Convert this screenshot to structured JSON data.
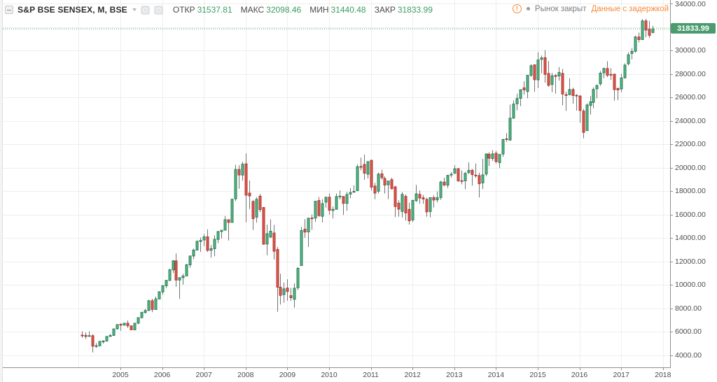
{
  "header": {
    "symbol": "S&P BSE SENSEX, M, BSE",
    "ohlc": [
      {
        "label": "ОТКР",
        "value": "31537.81"
      },
      {
        "label": "МАКС",
        "value": "32098.46"
      },
      {
        "label": "МИН",
        "value": "31440.48"
      },
      {
        "label": "ЗАКР",
        "value": "31833.99"
      }
    ]
  },
  "status": {
    "warning_glyph": "!",
    "market_status": "Рынок закрыт",
    "delay_notice": "Данные с задержкой"
  },
  "price_scale": {
    "last_price_label": "31833.99"
  },
  "colors": {
    "up_fill": "#53b987",
    "up_border": "#2c7c57",
    "down_fill": "#e0564e",
    "down_border": "#ae3b32",
    "wick": "#737375",
    "grid": "#eeeeee",
    "axis_line": "#8f8f8f",
    "axis_text": "#4c4c4c",
    "accent_green": "#3f9e68",
    "price_tag_bg": "#4a9c6e",
    "accent_orange": "#f58b3d",
    "muted_text": "#7e7e7e",
    "title_text": "#2e2e2e"
  },
  "chart_data": {
    "type": "candlestick",
    "title": "S&P BSE SENSEX",
    "interval": "M",
    "exchange": "BSE",
    "start_month": "2004-02",
    "last_close": 31833.99,
    "y_axis": {
      "min": 4000,
      "max": 34000,
      "tick_step": 2000,
      "tick_labels": [
        "4000.00",
        "6000.00",
        "8000.00",
        "10000.00",
        "12000.00",
        "14000.00",
        "16000.00",
        "18000.00",
        "20000.00",
        "22000.00",
        "24000.00",
        "26000.00",
        "28000.00",
        "30000.00",
        "32000.00",
        "34000.00"
      ]
    },
    "x_axis": {
      "year_labels": [
        "2005",
        "2006",
        "2007",
        "2008",
        "2009",
        "2010",
        "2011",
        "2012",
        "2013",
        "2014",
        "2015",
        "2016",
        "2017",
        "2018"
      ]
    },
    "candles": [
      [
        5699,
        6035,
        5480,
        5668
      ],
      [
        5679,
        5935,
        5365,
        5591
      ],
      [
        5600,
        6023,
        5599,
        5655
      ],
      [
        5656,
        5772,
        4227,
        4760
      ],
      [
        4767,
        5013,
        4613,
        4795
      ],
      [
        4799,
        5200,
        4723,
        5170
      ],
      [
        5175,
        5269,
        4982,
        5192
      ],
      [
        5196,
        5638,
        5156,
        5584
      ],
      [
        5589,
        5803,
        5558,
        5672
      ],
      [
        5679,
        6248,
        5649,
        6234
      ],
      [
        6242,
        6617,
        6176,
        6603
      ],
      [
        6626,
        6696,
        6069,
        6556
      ],
      [
        6552,
        6721,
        6508,
        6714
      ],
      [
        6715,
        6955,
        6321,
        6493
      ],
      [
        6488,
        6528,
        6118,
        6154
      ],
      [
        6154,
        6715,
        6140,
        6715
      ],
      [
        6717,
        7228,
        6647,
        7194
      ],
      [
        7194,
        7708,
        7123,
        7635
      ],
      [
        7636,
        7921,
        7537,
        7805
      ],
      [
        7806,
        8722,
        7818,
        8634
      ],
      [
        8637,
        8800,
        7656,
        7892
      ],
      [
        7891,
        8994,
        7891,
        8789
      ],
      [
        8789,
        9443,
        8769,
        9398
      ],
      [
        9390,
        9945,
        9158,
        9920
      ],
      [
        9919,
        10422,
        9713,
        10370
      ],
      [
        10368,
        11356,
        10344,
        11280
      ],
      [
        11280,
        12102,
        11008,
        12043
      ],
      [
        12037,
        12671,
        9826,
        10399
      ],
      [
        10399,
        10626,
        8799,
        10609
      ],
      [
        10609,
        10930,
        10007,
        10744
      ],
      [
        10751,
        11794,
        10751,
        11699
      ],
      [
        11699,
        12485,
        11444,
        12454
      ],
      [
        12454,
        13076,
        12178,
        12962
      ],
      [
        12962,
        13799,
        12937,
        13696
      ],
      [
        13696,
        14035,
        12801,
        13787
      ],
      [
        13827,
        14325,
        13303,
        14091
      ],
      [
        14090,
        14724,
        12800,
        12938
      ],
      [
        12938,
        13386,
        12316,
        13072
      ],
      [
        13072,
        14228,
        12426,
        13872
      ],
      [
        13872,
        14576,
        13554,
        14544
      ],
      [
        14544,
        14683,
        13946,
        14651
      ],
      [
        14664,
        15869,
        14638,
        15551
      ],
      [
        15552,
        15576,
        13779,
        15319
      ],
      [
        15323,
        17361,
        15323,
        17291
      ],
      [
        17328,
        20238,
        17145,
        19838
      ],
      [
        19837,
        20204,
        18183,
        19363
      ],
      [
        19363,
        20498,
        18886,
        20287
      ],
      [
        20325,
        21206,
        15332,
        17649
      ],
      [
        17820,
        18895,
        16457,
        17579
      ],
      [
        17105,
        17227,
        14677,
        15644
      ],
      [
        15771,
        17480,
        15297,
        17287
      ],
      [
        17560,
        17735,
        16196,
        16416
      ],
      [
        16591,
        16632,
        13406,
        13462
      ],
      [
        13480,
        15130,
        12514,
        14356
      ],
      [
        14064,
        15580,
        14003,
        14565
      ],
      [
        14412,
        15107,
        12153,
        12860
      ],
      [
        13006,
        13203,
        7697,
        9788
      ],
      [
        9788,
        10945,
        8316,
        9093
      ],
      [
        9162,
        10188,
        8467,
        9647
      ],
      [
        9721,
        10469,
        8631,
        9424
      ],
      [
        9066,
        9725,
        8619,
        8892
      ],
      [
        8762,
        10127,
        8047,
        9709
      ],
      [
        9745,
        11492,
        9546,
        11403
      ],
      [
        11635,
        14931,
        11621,
        14625
      ],
      [
        14746,
        15600,
        14016,
        14494
      ],
      [
        14506,
        15733,
        13220,
        15670
      ],
      [
        15694,
        16002,
        14684,
        15667
      ],
      [
        15691,
        17143,
        15357,
        17127
      ],
      [
        17186,
        17493,
        15805,
        15896
      ],
      [
        15838,
        17290,
        15331,
        16926
      ],
      [
        17054,
        17531,
        16578,
        17465
      ],
      [
        17473,
        17790,
        15982,
        16358
      ],
      [
        16339,
        16669,
        15652,
        16430
      ],
      [
        16438,
        17793,
        16438,
        17528
      ],
      [
        17555,
        18048,
        17277,
        17559
      ],
      [
        17536,
        17537,
        15960,
        16945
      ],
      [
        16942,
        17920,
        16319,
        17701
      ],
      [
        17745,
        18238,
        17396,
        17868
      ],
      [
        17911,
        18475,
        17820,
        17971
      ],
      [
        18027,
        20268,
        18027,
        20069
      ],
      [
        20095,
        20855,
        19768,
        20032
      ],
      [
        20266,
        21109,
        18955,
        19521
      ],
      [
        19435,
        20552,
        19074,
        20509
      ],
      [
        20621,
        20665,
        18038,
        18328
      ],
      [
        18426,
        18691,
        17296,
        17823
      ],
      [
        17982,
        19575,
        17792,
        19445
      ],
      [
        19463,
        19812,
        18976,
        19136
      ],
      [
        19066,
        19254,
        17786,
        18503
      ],
      [
        18527,
        18873,
        17314,
        18846
      ],
      [
        18974,
        19132,
        18132,
        18197
      ],
      [
        18352,
        18440,
        15766,
        16677
      ],
      [
        16964,
        17212,
        15801,
        16454
      ],
      [
        16255,
        17908,
        15745,
        17705
      ],
      [
        17540,
        17702,
        15479,
        16123
      ],
      [
        16428,
        17004,
        15136,
        15455
      ],
      [
        15535,
        17259,
        15358,
        17194
      ],
      [
        17179,
        18524,
        17062,
        17753
      ],
      [
        17714,
        18041,
        16921,
        17404
      ],
      [
        17422,
        17665,
        16913,
        17319
      ],
      [
        17281,
        17432,
        15810,
        16219
      ],
      [
        16246,
        17448,
        15749,
        17430
      ],
      [
        17438,
        17631,
        16598,
        17236
      ],
      [
        17242,
        17972,
        17026,
        17430
      ],
      [
        17444,
        18870,
        17250,
        18763
      ],
      [
        18763,
        19137,
        18393,
        18505
      ],
      [
        18505,
        19373,
        18255,
        19340
      ],
      [
        19370,
        19612,
        19149,
        19427
      ],
      [
        19513,
        20204,
        19509,
        19895
      ],
      [
        19907,
        19966,
        18793,
        18862
      ],
      [
        18877,
        19755,
        18568,
        18836
      ],
      [
        18864,
        19623,
        18144,
        19504
      ],
      [
        19576,
        20444,
        19451,
        19760
      ],
      [
        19769,
        19860,
        18467,
        19396
      ],
      [
        19352,
        20351,
        19126,
        19346
      ],
      [
        19317,
        19569,
        17449,
        18620
      ],
      [
        18691,
        20740,
        18166,
        19380
      ],
      [
        19453,
        21205,
        19264,
        21165
      ],
      [
        21135,
        21322,
        20138,
        20792
      ],
      [
        20771,
        21484,
        20568,
        21170
      ],
      [
        21222,
        21409,
        20343,
        20514
      ],
      [
        20428,
        21140,
        19963,
        21120
      ],
      [
        21154,
        22467,
        20921,
        22386
      ],
      [
        22455,
        22939,
        22198,
        22418
      ],
      [
        22356,
        25376,
        22277,
        24217
      ],
      [
        24217,
        25725,
        24163,
        25414
      ],
      [
        25445,
        26300,
        24892,
        25895
      ],
      [
        25908,
        26674,
        25233,
        26638
      ],
      [
        26801,
        27355,
        26220,
        26631
      ],
      [
        26488,
        27894,
        25911,
        27866
      ],
      [
        27875,
        28822,
        27740,
        28694
      ],
      [
        28762,
        28809,
        26469,
        27499
      ],
      [
        27486,
        29844,
        26776,
        29183
      ],
      [
        29228,
        29560,
        28044,
        29362
      ],
      [
        29381,
        30025,
        27248,
        27957
      ],
      [
        28027,
        29095,
        26898,
        27011
      ],
      [
        27091,
        28071,
        26424,
        27828
      ],
      [
        27850,
        27969,
        26307,
        27781
      ],
      [
        27823,
        28578,
        27416,
        28115
      ],
      [
        28036,
        28418,
        25298,
        26283
      ],
      [
        26220,
        26472,
        24833,
        26155
      ],
      [
        26220,
        27618,
        26169,
        26657
      ],
      [
        26656,
        26824,
        25451,
        26146
      ],
      [
        26169,
        26256,
        24867,
        26118
      ],
      [
        26101,
        26197,
        23840,
        24871
      ],
      [
        24825,
        25002,
        22495,
        23002
      ],
      [
        23154,
        25480,
        23133,
        25342
      ],
      [
        25301,
        26101,
        24523,
        25607
      ],
      [
        25565,
        26837,
        25058,
        26668
      ],
      [
        26725,
        27105,
        25911,
        26999
      ],
      [
        27144,
        28240,
        26971,
        28052
      ],
      [
        28083,
        28532,
        27628,
        28452
      ],
      [
        28452,
        29077,
        27716,
        27866
      ],
      [
        27950,
        28477,
        27488,
        27930
      ],
      [
        27966,
        28030,
        25717,
        26653
      ],
      [
        26756,
        26804,
        25754,
        26626
      ],
      [
        26711,
        27980,
        26447,
        27656
      ],
      [
        27669,
        28892,
        27590,
        28743
      ],
      [
        28849,
        29824,
        28716,
        29621
      ],
      [
        29737,
        30184,
        29241,
        29918
      ],
      [
        29921,
        31255,
        29804,
        31146
      ],
      [
        31138,
        31522,
        30681,
        30922
      ],
      [
        30922,
        32672,
        30938,
        32515
      ],
      [
        32514,
        32686,
        31128,
        31730
      ],
      [
        31809,
        32524,
        31081,
        31283
      ],
      [
        31537.81,
        32098.46,
        31440.48,
        31833.99
      ]
    ]
  }
}
